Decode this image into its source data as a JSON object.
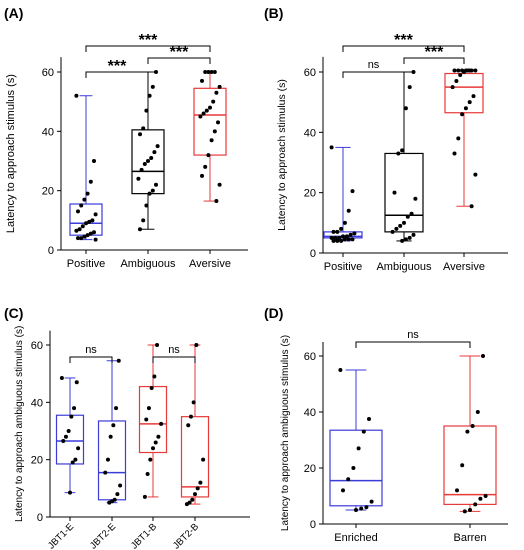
{
  "colors": {
    "positive": "#3b3bd9",
    "neutral": "#000000",
    "negative": "#e83a3a"
  },
  "chart_data": [
    {
      "panel_label": "(A)",
      "type": "box",
      "ylabel": "Latency to approach stimulus (s)",
      "ylim": [
        0,
        65
      ],
      "yticks": [
        0,
        20,
        40,
        60
      ],
      "categories": [
        "Positive",
        "Ambiguous",
        "Aversive"
      ],
      "category_colors": [
        "positive",
        "neutral",
        "negative"
      ],
      "boxes": [
        {
          "min": 3.5,
          "q1": 5,
          "median": 9,
          "q3": 15.5,
          "max": 52,
          "points": [
            52,
            30,
            23,
            19,
            17,
            15,
            13,
            12,
            10,
            9.5,
            9,
            8,
            7,
            6.5,
            6,
            5.5,
            5,
            4.5,
            4,
            4,
            3.5
          ]
        },
        {
          "min": 7,
          "q1": 19,
          "median": 26.5,
          "q3": 40.5,
          "max": 60,
          "points": [
            60,
            55,
            52,
            47,
            41,
            39,
            35,
            33,
            31,
            30,
            29,
            27,
            24,
            22,
            20,
            19,
            15,
            10,
            7
          ]
        },
        {
          "min": 16.5,
          "q1": 32,
          "median": 45.5,
          "q3": 54.5,
          "max": 60,
          "points": [
            60,
            60,
            60,
            60,
            57,
            55,
            53,
            50,
            48,
            47,
            46,
            45,
            43,
            40,
            37,
            32,
            28,
            25,
            22,
            16.5
          ]
        }
      ],
      "comparisons": [
        {
          "from": 0,
          "to": 2,
          "label": "***"
        },
        {
          "from": 0,
          "to": 1,
          "label": "***"
        },
        {
          "from": 1,
          "to": 2,
          "label": "***"
        }
      ]
    },
    {
      "panel_label": "(B)",
      "type": "box",
      "ylabel": "Latency to approach stimulus (s)",
      "ylim": [
        0,
        65
      ],
      "yticks": [
        0,
        20,
        40,
        60
      ],
      "categories": [
        "Positive",
        "Ambiguous",
        "Aversive"
      ],
      "category_colors": [
        "positive",
        "neutral",
        "negative"
      ],
      "boxes": [
        {
          "min": 4,
          "q1": 5,
          "median": 5.5,
          "q3": 7,
          "max": 35,
          "points": [
            35,
            20.5,
            14,
            10,
            8,
            7,
            7,
            6.5,
            6,
            5.5,
            5.5,
            5,
            5,
            5,
            4.5,
            4.5,
            4.5,
            4,
            4,
            4
          ]
        },
        {
          "min": 4,
          "q1": 7,
          "median": 12.5,
          "q3": 33,
          "max": 60,
          "points": [
            60,
            55,
            48,
            34,
            33,
            20,
            18,
            13,
            12,
            10,
            9,
            8,
            7,
            6,
            5,
            4.5,
            4
          ]
        },
        {
          "min": 15.5,
          "q1": 46.5,
          "median": 55,
          "q3": 59.5,
          "max": 60.5,
          "points": [
            60.5,
            60.5,
            60.5,
            60.5,
            60.5,
            60.5,
            60.5,
            60.5,
            60,
            59,
            57,
            55,
            52,
            50,
            48,
            46,
            38,
            33,
            26,
            15.5
          ]
        }
      ],
      "comparisons": [
        {
          "from": 0,
          "to": 2,
          "label": "***"
        },
        {
          "from": 0,
          "to": 1,
          "label": "ns"
        },
        {
          "from": 1,
          "to": 2,
          "label": "***"
        }
      ]
    },
    {
      "panel_label": "(C)",
      "type": "box",
      "ylabel": "Latency to approach ambiguous stimulus (s)",
      "ylim": [
        0,
        65
      ],
      "yticks": [
        0,
        20,
        40,
        60
      ],
      "categories": [
        "JBT1-E",
        "JBT2-E",
        "JBT1-B",
        "JBT2-B"
      ],
      "category_colors": [
        "positive",
        "positive",
        "negative",
        "negative"
      ],
      "boxes": [
        {
          "min": 8.5,
          "q1": 18.5,
          "median": 26.5,
          "q3": 35.5,
          "max": 48.5,
          "points": [
            48.5,
            47,
            38,
            35,
            30,
            28,
            26.5,
            24,
            20,
            19,
            8.5
          ]
        },
        {
          "min": 5,
          "q1": 6,
          "median": 15.5,
          "q3": 33.5,
          "max": 54.5,
          "points": [
            54.5,
            38,
            32,
            28,
            20,
            15.5,
            11,
            8,
            6,
            5.5,
            5
          ]
        },
        {
          "min": 7,
          "q1": 22.5,
          "median": 32.5,
          "q3": 45.5,
          "max": 60,
          "points": [
            60,
            49,
            45,
            38,
            34,
            32.5,
            28,
            26,
            24,
            20,
            15,
            7
          ]
        },
        {
          "min": 4.5,
          "q1": 7,
          "median": 10.5,
          "q3": 35,
          "max": 60,
          "points": [
            60,
            40,
            35,
            32,
            20,
            12,
            10,
            8,
            6,
            5,
            4.5
          ]
        }
      ],
      "comparisons": [
        {
          "from": 0,
          "to": 1,
          "label": "ns"
        },
        {
          "from": 2,
          "to": 3,
          "label": "ns"
        }
      ]
    },
    {
      "panel_label": "(D)",
      "type": "box",
      "ylabel": "Latency to approach ambiguous stimulus (s)",
      "ylim": [
        0,
        65
      ],
      "yticks": [
        0,
        20,
        40,
        60
      ],
      "categories": [
        "Enriched",
        "Barren"
      ],
      "category_colors": [
        "positive",
        "negative"
      ],
      "boxes": [
        {
          "min": 5,
          "q1": 6.5,
          "median": 15.5,
          "q3": 33.5,
          "max": 55,
          "points": [
            55,
            37.5,
            33,
            27,
            20,
            16,
            12,
            8,
            6,
            5.5,
            5
          ]
        },
        {
          "min": 4.5,
          "q1": 7,
          "median": 10.5,
          "q3": 35,
          "max": 60,
          "points": [
            60,
            40,
            35,
            33,
            21,
            12,
            10,
            9,
            7,
            5,
            4.5
          ]
        }
      ],
      "comparisons": [
        {
          "from": 0,
          "to": 1,
          "label": "ns"
        }
      ]
    }
  ]
}
